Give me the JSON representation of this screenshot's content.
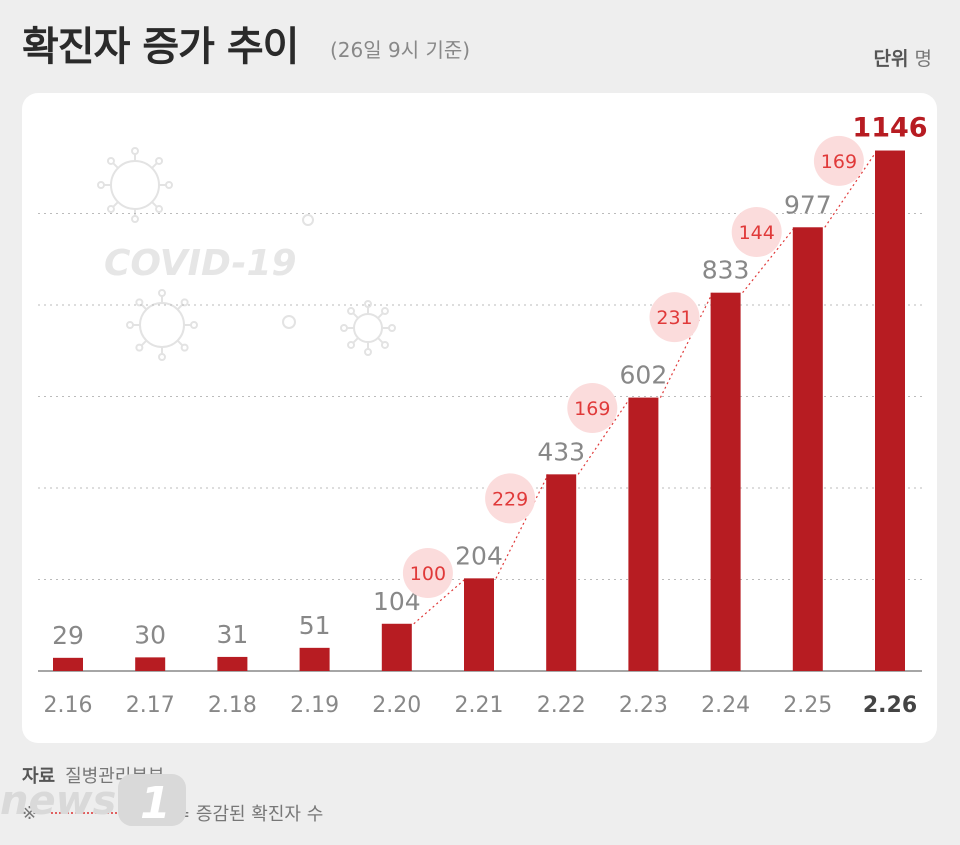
{
  "header": {
    "title": "확진자 증가 추이",
    "subtitle": "(26일 9시 기준)",
    "unit_label": "단위",
    "unit_value": "명"
  },
  "watermark_text": "COVID-19",
  "footer": {
    "source_label": "자료",
    "source_value": "질병관리본부",
    "legend_symbol": "※",
    "legend_text": "= 증감된 확진자 수"
  },
  "logo_text": "news1",
  "colors": {
    "bar": "#b71c22",
    "increase": "#e03a3a",
    "increase_bg": "#fbdcdc",
    "label": "#888888",
    "last_label": "#b71c22"
  },
  "chart_data": {
    "type": "bar",
    "categories": [
      "2.16",
      "2.17",
      "2.18",
      "2.19",
      "2.20",
      "2.21",
      "2.22",
      "2.23",
      "2.24",
      "2.25",
      "2.26"
    ],
    "values": [
      29,
      30,
      31,
      51,
      104,
      204,
      433,
      602,
      833,
      977,
      1146
    ],
    "increases": [
      {
        "from": "2.20",
        "to": "2.21",
        "value": 100
      },
      {
        "from": "2.21",
        "to": "2.22",
        "value": 229
      },
      {
        "from": "2.22",
        "to": "2.23",
        "value": 169
      },
      {
        "from": "2.23",
        "to": "2.24",
        "value": 231
      },
      {
        "from": "2.24",
        "to": "2.25",
        "value": 144
      },
      {
        "from": "2.25",
        "to": "2.26",
        "value": 169
      }
    ],
    "ylim": [
      0,
      1200
    ],
    "grid": true
  }
}
